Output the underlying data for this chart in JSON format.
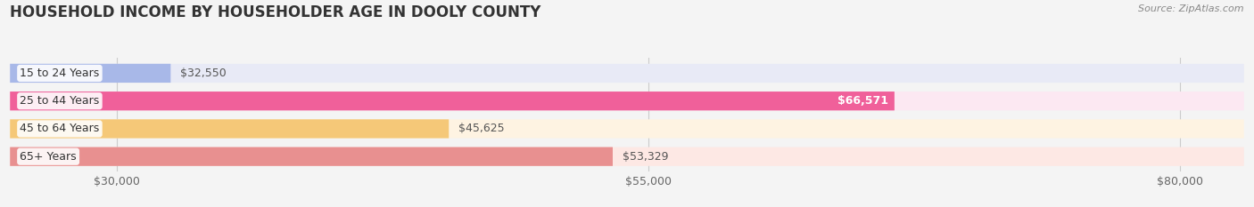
{
  "title": "HOUSEHOLD INCOME BY HOUSEHOLDER AGE IN DOOLY COUNTY",
  "source": "Source: ZipAtlas.com",
  "categories": [
    "15 to 24 Years",
    "25 to 44 Years",
    "45 to 64 Years",
    "65+ Years"
  ],
  "values": [
    32550,
    66571,
    45625,
    53329
  ],
  "bar_colors": [
    "#a8b8e8",
    "#f0609a",
    "#f5c878",
    "#e89090"
  ],
  "bar_bg_colors": [
    "#e8eaf6",
    "#fce8f2",
    "#fef3e2",
    "#fde8e4"
  ],
  "value_labels": [
    "$32,550",
    "$66,571",
    "$45,625",
    "$53,329"
  ],
  "value_label_inside": [
    false,
    true,
    false,
    false
  ],
  "xlim_min": 25000,
  "xlim_max": 83000,
  "xticks": [
    30000,
    55000,
    80000
  ],
  "xtick_labels": [
    "$30,000",
    "$55,000",
    "$80,000"
  ],
  "background_color": "#f4f4f4",
  "title_fontsize": 12,
  "tick_fontsize": 9,
  "label_fontsize": 9,
  "value_fontsize": 9,
  "bar_height": 0.68
}
